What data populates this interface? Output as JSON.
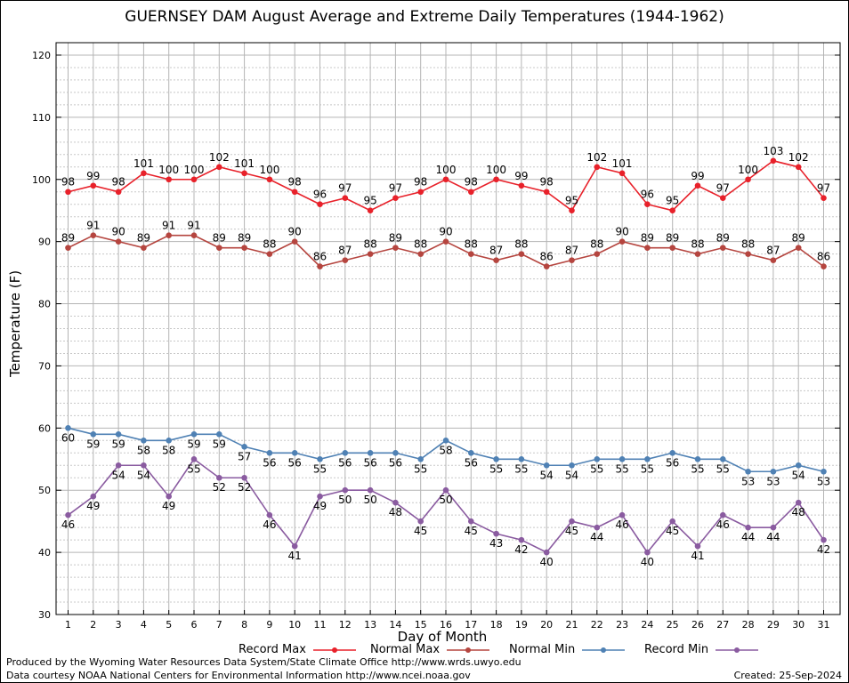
{
  "chart_data": {
    "type": "line",
    "title": "GUERNSEY DAM August Average and Extreme Daily Temperatures (1944-1962)",
    "xlabel": "Day of Month",
    "ylabel": "Temperature (F)",
    "ylim": [
      30,
      122
    ],
    "yticks": [
      30,
      40,
      50,
      60,
      70,
      80,
      90,
      100,
      110,
      120
    ],
    "grid": true,
    "legend_position": "bottom",
    "x": [
      1,
      2,
      3,
      4,
      5,
      6,
      7,
      8,
      9,
      10,
      11,
      12,
      13,
      14,
      15,
      16,
      17,
      18,
      19,
      20,
      21,
      22,
      23,
      24,
      25,
      26,
      27,
      28,
      29,
      30,
      31
    ],
    "series": [
      {
        "name": "Record Max",
        "color": "#e8212a",
        "labels_below": false,
        "values": [
          98,
          99,
          98,
          101,
          100,
          100,
          102,
          101,
          100,
          98,
          96,
          97,
          95,
          97,
          98,
          100,
          98,
          100,
          99,
          98,
          95,
          102,
          101,
          96,
          95,
          99,
          97,
          100,
          103,
          102,
          97
        ]
      },
      {
        "name": "Normal Max",
        "color": "#b5453f",
        "labels_below": false,
        "values": [
          89,
          91,
          90,
          89,
          91,
          91,
          89,
          89,
          88,
          90,
          86,
          87,
          88,
          89,
          88,
          90,
          88,
          87,
          88,
          86,
          87,
          88,
          90,
          89,
          89,
          88,
          89,
          88,
          87,
          89,
          86
        ]
      },
      {
        "name": "Normal Min",
        "color": "#4f81b4",
        "labels_below": true,
        "values": [
          60,
          59,
          59,
          58,
          58,
          59,
          59,
          57,
          56,
          56,
          55,
          56,
          56,
          56,
          55,
          58,
          56,
          55,
          55,
          54,
          54,
          55,
          55,
          55,
          56,
          55,
          55,
          53,
          53,
          54,
          53
        ]
      },
      {
        "name": "Record Min",
        "color": "#8a5ba0",
        "labels_below": true,
        "values": [
          46,
          49,
          54,
          54,
          49,
          55,
          52,
          52,
          46,
          41,
          49,
          50,
          50,
          48,
          45,
          50,
          45,
          43,
          42,
          40,
          45,
          44,
          46,
          40,
          45,
          41,
          46,
          44,
          44,
          48,
          42
        ]
      }
    ]
  },
  "footer": {
    "produced_by": "Produced by the Wyoming Water Resources Data System/State Climate Office http://www.wrds.uwyo.edu",
    "data_courtesy": "Data courtesy NOAA National Centers for Environmental Information http://www.ncei.noaa.gov",
    "created": "Created:  25-Sep-2024"
  }
}
